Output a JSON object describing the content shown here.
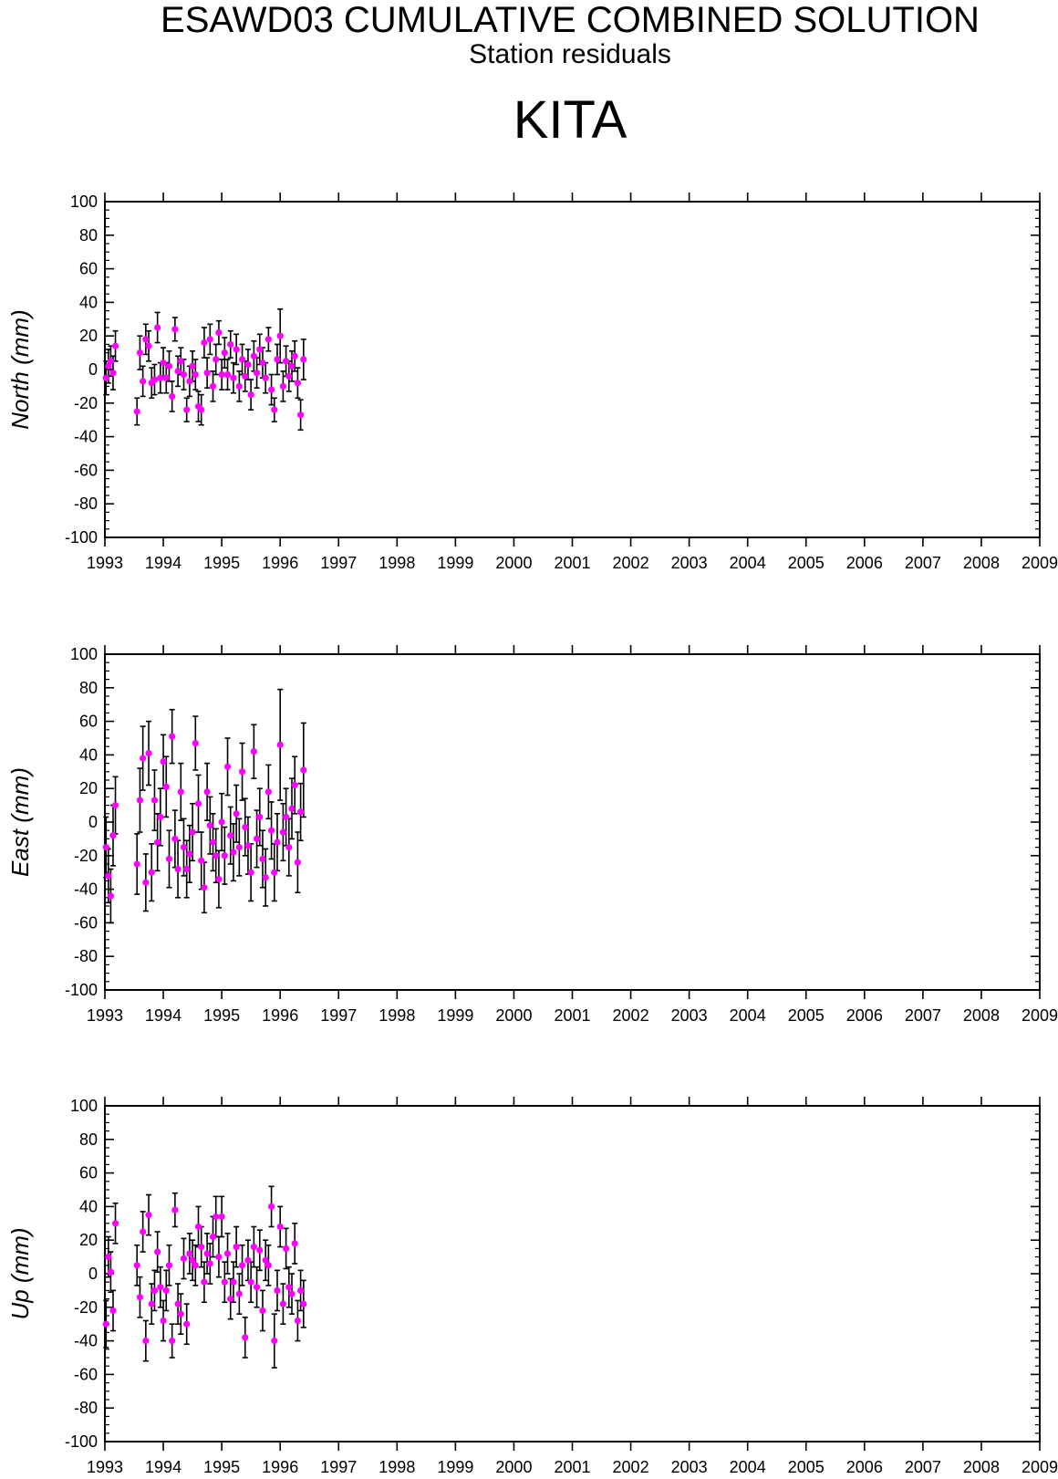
{
  "title": "ESAWD03 CUMULATIVE COMBINED SOLUTION",
  "subtitle": "Station residuals",
  "station": "KITA",
  "colors": {
    "point": "#ff00ff",
    "errorbar": "#000000",
    "axis": "#000000"
  },
  "chart_data": [
    {
      "type": "scatter",
      "ylabel": "North (mm)",
      "xlim": [
        1993,
        2009
      ],
      "ylim": [
        -100,
        100
      ],
      "xticks": [
        1993,
        1994,
        1995,
        1996,
        1997,
        1998,
        1999,
        2000,
        2001,
        2002,
        2003,
        2004,
        2005,
        2006,
        2007,
        2008,
        2009
      ],
      "yticks": [
        100,
        80,
        60,
        40,
        20,
        0,
        -20,
        -40,
        -60,
        -80,
        -100
      ],
      "errorbars": true,
      "series": [
        {
          "x": [
            1993.02,
            1993.06,
            1993.1,
            1993.14,
            1993.18,
            1993.55,
            1993.6,
            1993.65,
            1993.7,
            1993.75,
            1993.8,
            1993.85,
            1993.9,
            1993.95,
            1994.0,
            1994.05,
            1994.1,
            1994.15,
            1994.2,
            1994.25,
            1994.3,
            1994.35,
            1994.4,
            1994.45,
            1994.5,
            1994.55,
            1994.6,
            1994.65,
            1994.7,
            1994.75,
            1994.8,
            1994.85,
            1994.9,
            1994.95,
            1995.0,
            1995.05,
            1995.1,
            1995.15,
            1995.2,
            1995.25,
            1995.3,
            1995.35,
            1995.4,
            1995.45,
            1995.5,
            1995.55,
            1995.6,
            1995.65,
            1995.7,
            1995.75,
            1995.8,
            1995.85,
            1995.9,
            1995.95,
            1996.0,
            1996.05,
            1996.1,
            1996.15,
            1996.2,
            1996.25,
            1996.3,
            1996.35,
            1996.4
          ],
          "y": [
            -5,
            2,
            5,
            -2,
            14,
            -25,
            10,
            -7,
            18,
            14,
            -8,
            -6,
            25,
            -5,
            4,
            -5,
            2,
            -16,
            24,
            -1,
            5,
            -3,
            -24,
            -7,
            2,
            -3,
            -22,
            -24,
            16,
            -2,
            18,
            -10,
            6,
            22,
            -3,
            10,
            -3,
            15,
            -5,
            12,
            -10,
            6,
            -4,
            3,
            -15,
            8,
            -2,
            12,
            4,
            -5,
            18,
            -12,
            -24,
            6,
            20,
            -10,
            5,
            -4,
            2,
            8,
            -8,
            -27,
            6
          ],
          "err": [
            10,
            10,
            9,
            10,
            9,
            8,
            10,
            9,
            9,
            9,
            9,
            9,
            9,
            9,
            9,
            9,
            9,
            9,
            7,
            9,
            8,
            9,
            7,
            9,
            9,
            9,
            9,
            9,
            9,
            9,
            9,
            9,
            9,
            7,
            9,
            9,
            9,
            8,
            9,
            9,
            9,
            9,
            9,
            9,
            9,
            9,
            9,
            9,
            9,
            9,
            7,
            9,
            7,
            9,
            16,
            9,
            9,
            9,
            9,
            9,
            9,
            9,
            12
          ]
        }
      ]
    },
    {
      "type": "scatter",
      "ylabel": "East (mm)",
      "xlim": [
        1993,
        2009
      ],
      "ylim": [
        -100,
        100
      ],
      "xticks": [
        1993,
        1994,
        1995,
        1996,
        1997,
        1998,
        1999,
        2000,
        2001,
        2002,
        2003,
        2004,
        2005,
        2006,
        2007,
        2008,
        2009
      ],
      "yticks": [
        100,
        80,
        60,
        40,
        20,
        0,
        -20,
        -40,
        -60,
        -80,
        -100
      ],
      "errorbars": true,
      "series": [
        {
          "x": [
            1993.02,
            1993.06,
            1993.1,
            1993.14,
            1993.18,
            1993.55,
            1993.6,
            1993.65,
            1993.7,
            1993.75,
            1993.8,
            1993.85,
            1993.9,
            1993.95,
            1994.0,
            1994.05,
            1994.1,
            1994.15,
            1994.2,
            1994.25,
            1994.3,
            1994.35,
            1994.4,
            1994.45,
            1994.5,
            1994.55,
            1994.6,
            1994.65,
            1994.7,
            1994.75,
            1994.8,
            1994.85,
            1994.9,
            1994.95,
            1995.0,
            1995.05,
            1995.1,
            1995.15,
            1995.2,
            1995.25,
            1995.3,
            1995.35,
            1995.4,
            1995.45,
            1995.5,
            1995.55,
            1995.6,
            1995.65,
            1995.7,
            1995.75,
            1995.8,
            1995.85,
            1995.9,
            1995.95,
            1996.0,
            1996.05,
            1996.1,
            1996.15,
            1996.2,
            1996.25,
            1996.3,
            1996.35,
            1996.4
          ],
          "y": [
            -15,
            -32,
            -44,
            -8,
            10,
            -25,
            13,
            38,
            -36,
            41,
            -30,
            13,
            -12,
            3,
            36,
            21,
            -22,
            51,
            -10,
            -28,
            18,
            -15,
            -28,
            -19,
            -6,
            47,
            11,
            -23,
            -39,
            18,
            -2,
            -12,
            -20,
            -34,
            0,
            -20,
            33,
            -8,
            -18,
            5,
            -15,
            30,
            -3,
            -14,
            -30,
            42,
            -10,
            3,
            -22,
            -33,
            18,
            -5,
            -30,
            -12,
            46,
            -6,
            3,
            -15,
            8,
            22,
            -24,
            6,
            31
          ],
          "err": [
            18,
            16,
            16,
            18,
            17,
            18,
            19,
            19,
            17,
            19,
            17,
            18,
            17,
            17,
            16,
            18,
            17,
            16,
            17,
            17,
            17,
            17,
            17,
            17,
            17,
            16,
            17,
            17,
            15,
            17,
            17,
            17,
            16,
            17,
            17,
            17,
            17,
            17,
            17,
            17,
            17,
            17,
            17,
            17,
            17,
            16,
            17,
            17,
            17,
            17,
            16,
            17,
            17,
            17,
            33,
            17,
            17,
            17,
            18,
            17,
            18,
            17,
            28
          ]
        }
      ]
    },
    {
      "type": "scatter",
      "ylabel": "Up (mm)",
      "xlim": [
        1993,
        2009
      ],
      "ylim": [
        -100,
        100
      ],
      "xticks": [
        1993,
        1994,
        1995,
        1996,
        1997,
        1998,
        1999,
        2000,
        2001,
        2002,
        2003,
        2004,
        2005,
        2006,
        2007,
        2008,
        2009
      ],
      "yticks": [
        100,
        80,
        60,
        40,
        20,
        0,
        -20,
        -40,
        -60,
        -80,
        -100
      ],
      "errorbars": true,
      "series": [
        {
          "x": [
            1993.02,
            1993.06,
            1993.1,
            1993.14,
            1993.18,
            1993.55,
            1993.6,
            1993.65,
            1993.7,
            1993.75,
            1993.8,
            1993.85,
            1993.9,
            1993.95,
            1994.0,
            1994.05,
            1994.1,
            1994.15,
            1994.2,
            1994.25,
            1994.3,
            1994.35,
            1994.4,
            1994.45,
            1994.5,
            1994.55,
            1994.6,
            1994.65,
            1994.7,
            1994.75,
            1994.8,
            1994.85,
            1994.9,
            1994.95,
            1995.0,
            1995.05,
            1995.1,
            1995.15,
            1995.2,
            1995.25,
            1995.3,
            1995.35,
            1995.4,
            1995.45,
            1995.5,
            1995.55,
            1995.6,
            1995.65,
            1995.7,
            1995.75,
            1995.8,
            1995.85,
            1995.9,
            1995.95,
            1996.0,
            1996.05,
            1996.1,
            1996.15,
            1996.2,
            1996.25,
            1996.3,
            1996.35,
            1996.4
          ],
          "y": [
            -30,
            10,
            1,
            -22,
            30,
            5,
            -14,
            25,
            -40,
            35,
            -18,
            -10,
            13,
            -8,
            -28,
            -10,
            5,
            -40,
            38,
            -18,
            -24,
            9,
            -30,
            12,
            8,
            5,
            28,
            16,
            -5,
            12,
            6,
            22,
            34,
            10,
            34,
            -5,
            12,
            -15,
            -5,
            16,
            -12,
            5,
            -38,
            8,
            -5,
            16,
            -8,
            14,
            -22,
            8,
            5,
            40,
            -40,
            -10,
            28,
            -18,
            15,
            -8,
            -12,
            18,
            -28,
            -10,
            -18
          ],
          "err": [
            14,
            12,
            12,
            12,
            12,
            12,
            12,
            12,
            12,
            12,
            12,
            12,
            12,
            12,
            12,
            12,
            12,
            10,
            10,
            12,
            12,
            12,
            12,
            12,
            12,
            12,
            12,
            12,
            12,
            12,
            12,
            12,
            12,
            12,
            12,
            12,
            12,
            12,
            12,
            12,
            12,
            12,
            12,
            12,
            12,
            12,
            12,
            12,
            12,
            12,
            12,
            12,
            16,
            12,
            12,
            12,
            12,
            12,
            12,
            12,
            12,
            12,
            14
          ]
        }
      ]
    }
  ]
}
